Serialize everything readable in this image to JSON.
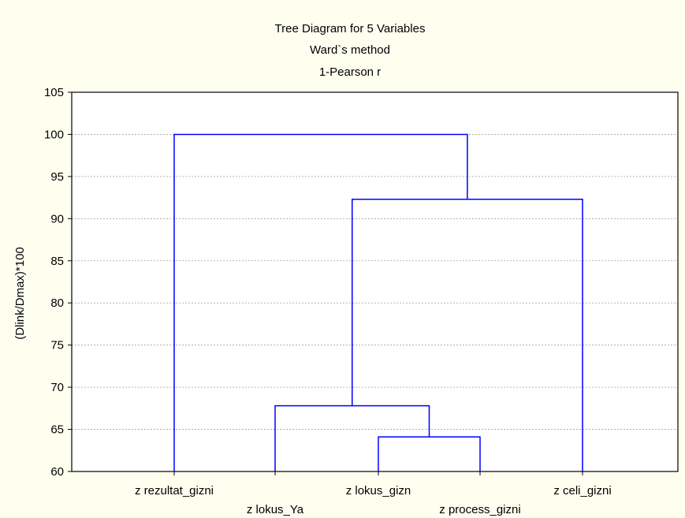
{
  "chart_data": {
    "type": "dendrogram",
    "title_lines": [
      "Tree Diagram for 5   Variables",
      "Ward`s method",
      "1-Pearson r"
    ],
    "xlabel": "",
    "ylabel": "(Dlink/Dmax)*100",
    "ylim": [
      60,
      105
    ],
    "yticks": [
      60,
      65,
      70,
      75,
      80,
      85,
      90,
      95,
      100,
      105
    ],
    "grid": true,
    "leaves": [
      {
        "label": "z rezultat_gizni",
        "label_row": 1
      },
      {
        "label": "z lokus_Ya",
        "label_row": 2
      },
      {
        "label": "z lokus_gizn",
        "label_row": 1
      },
      {
        "label": "z process_gizni",
        "label_row": 2
      },
      {
        "label": "z celi_gizni",
        "label_row": 1
      }
    ],
    "merges": [
      {
        "left_leaf": 2,
        "right_leaf": 3,
        "height": 64.1
      },
      {
        "left_leaf": 1,
        "right_cluster": 0,
        "height": 67.8
      },
      {
        "left_cluster": 1,
        "right_leaf": 4,
        "height": 92.3
      },
      {
        "left_leaf": 0,
        "right_cluster": 2,
        "height": 100
      }
    ]
  },
  "colors": {
    "background": "#fffff0",
    "plot_background": "#ffffff",
    "branch": "#0000ff",
    "grid": "#a0a0a0",
    "axis": "#000000"
  }
}
